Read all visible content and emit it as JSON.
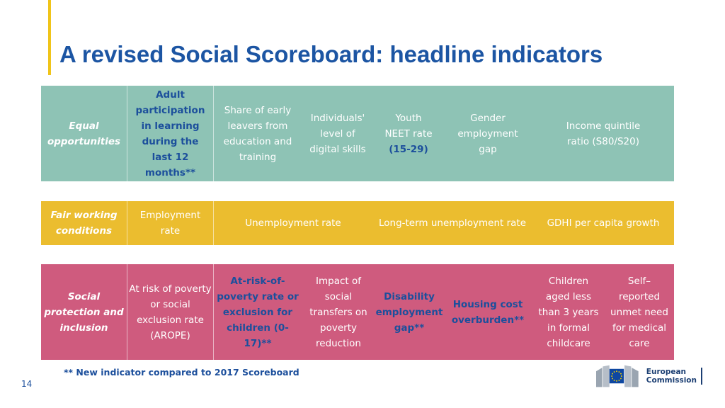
{
  "title": "A revised Social Scoreboard: headline indicators",
  "bands": {
    "equal": {
      "category": "Equal opportunities",
      "adult_participation": "Adult participation in learning during the last 12 months**",
      "early_leavers": "Share of early leavers from education and training",
      "digital_skills": "Individuals' level of digital skills",
      "neet_prefix": "Youth NEET rate ",
      "neet_age": "(15-29)",
      "gender_gap": "Gender employment gap",
      "income_quintile": "Income quintile ratio (S80/S20)"
    },
    "fair": {
      "category": "Fair working conditions",
      "employment_rate": "Employment rate",
      "unemployment_rate": "Unemployment rate",
      "long_term": "Long-term unemployment rate",
      "gdhi": "GDHI per capita growth"
    },
    "social": {
      "category": "Social protection and inclusion",
      "arope": "At risk of poverty or social exclusion rate (AROPE)",
      "arope_children": "At-risk-of-poverty rate or exclusion for children (0-17)**",
      "social_transfers": "Impact of social transfers on poverty reduction",
      "disability_gap": "Disability employment gap**",
      "housing_cost": "Housing cost overburden**",
      "childcare": "Children aged less than 3 years in formal childcare",
      "unmet_medical": "Self–reported unmet need for medical care"
    }
  },
  "footnote": "** New indicator compared to 2017 Scoreboard",
  "page_number": "14",
  "logo": {
    "line1": "European",
    "line2": "Commission"
  },
  "colors": {
    "title": "#1c55a3",
    "equal": "#8ec3b5",
    "fair": "#ebbd2f",
    "social": "#cf5b7e",
    "new_indicator": "#1c4f9c",
    "accent": "#f0c419"
  }
}
